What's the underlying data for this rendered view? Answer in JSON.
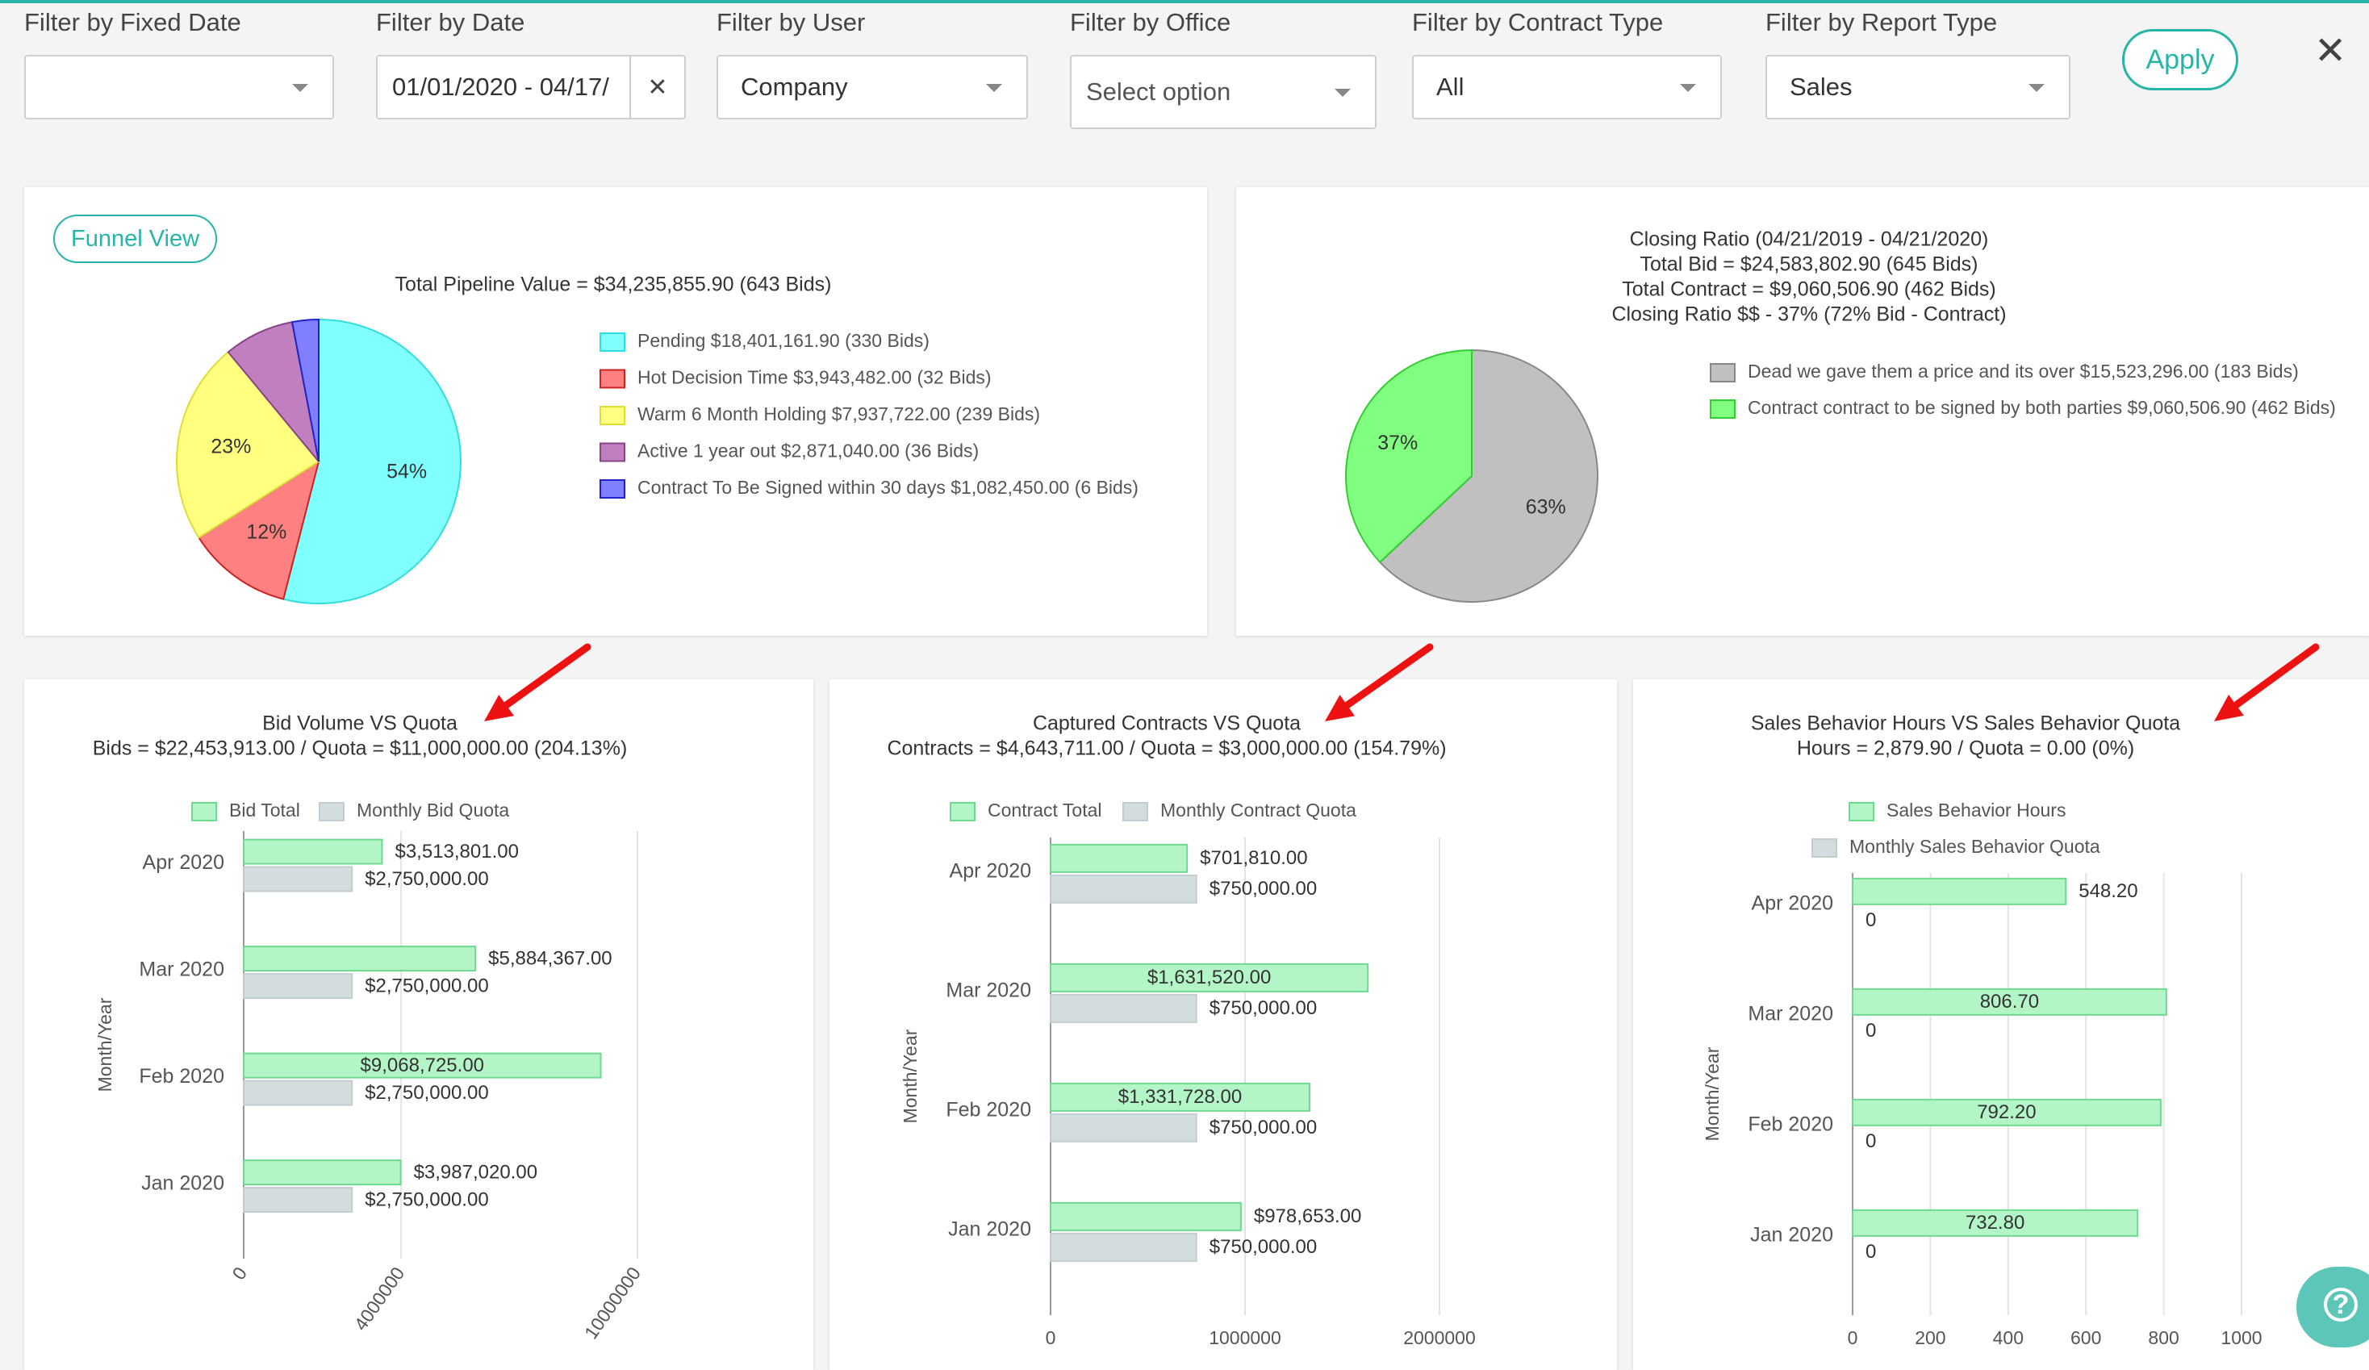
{
  "filters": [
    {
      "label": "Filter by Fixed Date",
      "value": ""
    },
    {
      "label": "Filter by Date",
      "value": "01/01/2020 - 04/17/"
    },
    {
      "label": "Filter by User",
      "value": "Company"
    },
    {
      "label": "Filter by Office",
      "value": "Select option"
    },
    {
      "label": "Filter by Contract Type",
      "value": "All"
    },
    {
      "label": "Filter by Report Type",
      "value": "Sales"
    }
  ],
  "clear_symbol": "✕",
  "apply_label": "Apply",
  "close_symbol": "✕",
  "funnel_view_label": "Funnel View",
  "help_symbol": "?",
  "colors": {
    "accent": "#26b5a6",
    "annotation_arrow": "#ee1111"
  },
  "chart_data": [
    {
      "type": "pie",
      "title": "Total Pipeline Value = $34,235,855.90 (643 Bids)",
      "legend_position": "right",
      "series": [
        {
          "name": "Pending $18,401,161.90 (330 Bids)",
          "value": 54,
          "label": "54%",
          "color": "#80ffff",
          "stroke": "#33dddd"
        },
        {
          "name": "Hot Decision Time  $3,943,482.00 (32 Bids)",
          "value": 12,
          "label": "12%",
          "color": "#ff8080",
          "stroke": "#cc2222"
        },
        {
          "name": "Warm 6 Month Holding $7,937,722.00 (239 Bids)",
          "value": 23,
          "label": "23%",
          "color": "#ffff80",
          "stroke": "#dddd33"
        },
        {
          "name": "Active 1 year out $2,871,040.00 (36 Bids)",
          "value": 8,
          "label": "",
          "color": "#c080c0",
          "stroke": "#884488"
        },
        {
          "name": "Contract To Be Signed within 30 days $1,082,450.00 (6 Bids)",
          "value": 3,
          "label": "",
          "color": "#8080ff",
          "stroke": "#2222cc"
        }
      ]
    },
    {
      "type": "pie",
      "title_lines": [
        "Closing Ratio (04/21/2019 - 04/21/2020)",
        "Total Bid = $24,583,802.90 (645 Bids)",
        "Total Contract = $9,060,506.90 (462 Bids)",
        "Closing Ratio $$ - 37% (72% Bid - Contract)"
      ],
      "legend_position": "right",
      "series": [
        {
          "name": "Dead we gave them a price and its over $15,523,296.00 (183 Bids)",
          "value": 63,
          "label": "63%",
          "color": "#c0c0c0",
          "stroke": "#888888"
        },
        {
          "name": "Contract contract to be signed by both parties $9,060,506.90 (462 Bids)",
          "value": 37,
          "label": "37%",
          "color": "#80ff80",
          "stroke": "#33cc33"
        }
      ]
    },
    {
      "type": "bar",
      "orientation": "horizontal",
      "title_lines": [
        "Bid Volume VS Quota",
        "Bids = $22,453,913.00 / Quota = $11,000,000.00 (204.13%)"
      ],
      "ylabel": "Month/Year",
      "categories": [
        "Apr 2020",
        "Mar 2020",
        "Feb 2020",
        "Jan 2020"
      ],
      "xticks": [
        "0",
        "4000000",
        "10000000"
      ],
      "xlim": [
        0,
        10000000
      ],
      "xtick_rotation": "diagonal",
      "legend_position": "top",
      "series": [
        {
          "name": "Bid Total",
          "values": [
            3513801,
            5884367,
            9068725,
            3987020
          ],
          "labels": [
            "$3,513,801.00",
            "$5,884,367.00",
            "$9,068,725.00",
            "$3,987,020.00"
          ],
          "label_inside": [
            false,
            false,
            true,
            false
          ],
          "color": "#b3f5c6",
          "stroke": "#6fd98f"
        },
        {
          "name": "Monthly Bid Quota",
          "values": [
            2750000,
            2750000,
            2750000,
            2750000
          ],
          "labels": [
            "$2,750,000.00",
            "$2,750,000.00",
            "$2,750,000.00",
            "$2,750,000.00"
          ],
          "label_inside": [
            false,
            false,
            false,
            false
          ],
          "color": "#d3dde0",
          "stroke": "#c3cdd0"
        }
      ]
    },
    {
      "type": "bar",
      "orientation": "horizontal",
      "title_lines": [
        "Captured Contracts VS Quota",
        "Contracts = $4,643,711.00 / Quota = $3,000,000.00 (154.79%)"
      ],
      "ylabel": "Month/Year",
      "categories": [
        "Apr 2020",
        "Mar 2020",
        "Feb 2020",
        "Jan 2020"
      ],
      "xticks": [
        "0",
        "1000000",
        "2000000"
      ],
      "xlim": [
        0,
        2000000
      ],
      "legend_position": "top",
      "series": [
        {
          "name": "Contract Total",
          "values": [
            701810,
            1631520,
            1331728,
            978653
          ],
          "labels": [
            "$701,810.00",
            "$1,631,520.00",
            "$1,331,728.00",
            "$978,653.00"
          ],
          "label_inside": [
            false,
            true,
            true,
            false
          ],
          "color": "#b3f5c6",
          "stroke": "#6fd98f"
        },
        {
          "name": "Monthly Contract Quota",
          "values": [
            750000,
            750000,
            750000,
            750000
          ],
          "labels": [
            "$750,000.00",
            "$750,000.00",
            "$750,000.00",
            "$750,000.00"
          ],
          "label_inside": [
            false,
            false,
            false,
            false
          ],
          "color": "#d3dde0",
          "stroke": "#c3cdd0"
        }
      ]
    },
    {
      "type": "bar",
      "orientation": "horizontal",
      "title_lines": [
        "Sales Behavior Hours VS Sales Behavior Quota",
        "Hours = 2,879.90 / Quota = 0.00 (0%)"
      ],
      "ylabel": "Month/Year",
      "categories": [
        "Apr 2020",
        "Mar 2020",
        "Feb 2020",
        "Jan 2020"
      ],
      "xticks": [
        "0",
        "200",
        "400",
        "600",
        "800",
        "1000"
      ],
      "xlim": [
        0,
        1000
      ],
      "legend_position": "top",
      "series": [
        {
          "name": "Sales Behavior Hours",
          "values": [
            548.2,
            806.7,
            792.2,
            732.8
          ],
          "labels": [
            "548.20",
            "806.70",
            "792.20",
            "732.80"
          ],
          "label_inside": [
            false,
            true,
            true,
            true
          ],
          "color": "#b3f5c6",
          "stroke": "#6fd98f"
        },
        {
          "name": "Monthly Sales Behavior Quota",
          "values": [
            0,
            0,
            0,
            0
          ],
          "labels": [
            "0",
            "0",
            "0",
            "0"
          ],
          "label_inside": [
            false,
            false,
            false,
            false
          ],
          "color": "#d3dde0",
          "stroke": "#c3cdd0"
        }
      ]
    }
  ]
}
